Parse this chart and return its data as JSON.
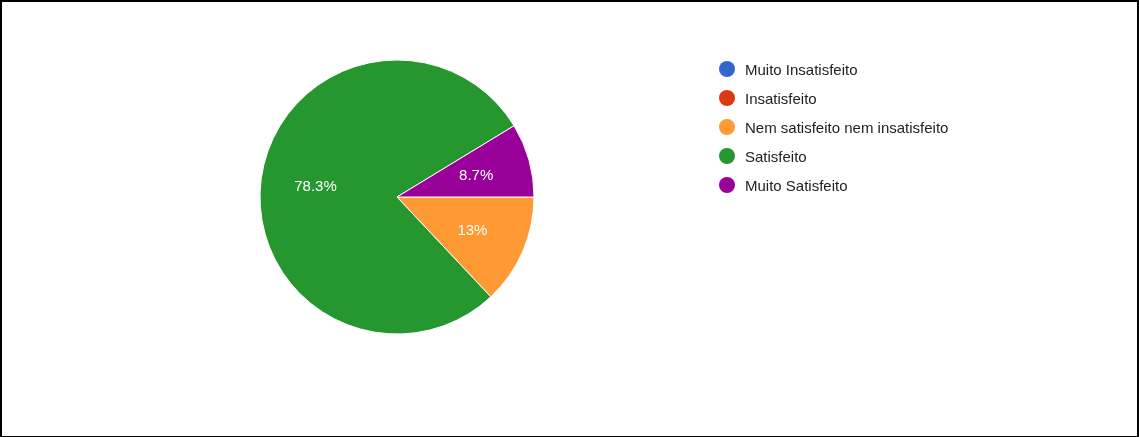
{
  "chart_data": {
    "type": "pie",
    "categories": [
      "Muito Insatisfeito",
      "Insatisfeito",
      "Nem satisfeito nem insatisfeito",
      "Satisfeito",
      "Muito Satisfeito"
    ],
    "values": [
      0,
      0,
      13,
      78.3,
      8.7
    ],
    "colors": [
      "#3366cc",
      "#dc3912",
      "#ff9933",
      "#26962f",
      "#990099"
    ],
    "value_labels": [
      null,
      null,
      "13%",
      "78.3%",
      "8.7%"
    ],
    "legend": "right"
  }
}
